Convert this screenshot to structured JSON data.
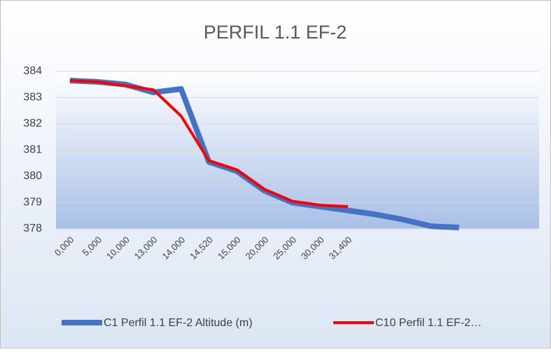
{
  "chart_data": {
    "type": "line",
    "title": "PERFIL 1.1 EF-2",
    "categories": [
      "0,000",
      "5,000",
      "10,000",
      "13,000",
      "14,000",
      "14,520",
      "15,000",
      "20,000",
      "25,000",
      "30,000",
      "31,400",
      null,
      null,
      null,
      null,
      null,
      null
    ],
    "series": [
      {
        "name": "C1 Perfil 1.1 EF-2 Altitude (m)",
        "color": "#4472c4",
        "values": [
          383.65,
          383.6,
          383.5,
          383.2,
          383.33,
          380.55,
          380.2,
          379.45,
          379.0,
          378.85,
          378.7,
          378.55,
          378.35,
          378.1,
          378.05,
          null,
          null
        ]
      },
      {
        "name": "C10 Perfil 1.1 EF-2…",
        "color": "#ff0000",
        "values": [
          383.65,
          383.6,
          383.45,
          383.3,
          382.3,
          380.6,
          380.25,
          379.5,
          379.05,
          378.9,
          378.85,
          null,
          null,
          null,
          null,
          null,
          null
        ]
      }
    ],
    "ylim": [
      378,
      384
    ],
    "yticks": [
      378,
      379,
      380,
      381,
      382,
      383,
      384
    ],
    "grid": true
  }
}
